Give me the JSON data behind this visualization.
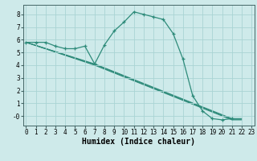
{
  "title": "",
  "xlabel": "Humidex (Indice chaleur)",
  "ylabel": "",
  "bg_color": "#ceeaea",
  "line_color": "#2e8b7a",
  "grid_color": "#aad4d4",
  "series_main": {
    "x": [
      0,
      1,
      2,
      3,
      4,
      5,
      6,
      7,
      8,
      9,
      10,
      11,
      12,
      13,
      14,
      15,
      16,
      17,
      18,
      19,
      20,
      21
    ],
    "y": [
      5.8,
      5.8,
      5.8,
      5.5,
      5.3,
      5.3,
      5.5,
      4.1,
      5.6,
      6.7,
      7.4,
      8.2,
      8.0,
      7.8,
      7.6,
      6.5,
      4.5,
      1.6,
      0.4,
      -0.2,
      -0.3,
      -0.2
    ]
  },
  "lines": [
    {
      "x": [
        0,
        7,
        21,
        22
      ],
      "y": [
        5.8,
        4.1,
        -0.2,
        -0.2
      ]
    },
    {
      "x": [
        0,
        7,
        21,
        22
      ],
      "y": [
        5.8,
        4.05,
        -0.25,
        -0.25
      ]
    },
    {
      "x": [
        0,
        7,
        21,
        22
      ],
      "y": [
        5.8,
        4.0,
        -0.3,
        -0.3
      ]
    }
  ],
  "xlim": [
    -0.3,
    23.3
  ],
  "ylim": [
    -0.75,
    8.75
  ],
  "yticks": [
    0,
    1,
    2,
    3,
    4,
    5,
    6,
    7,
    8
  ],
  "ytick_labels": [
    "-0",
    "1",
    "2",
    "3",
    "4",
    "5",
    "6",
    "7",
    "8"
  ],
  "xticks": [
    0,
    1,
    2,
    3,
    4,
    5,
    6,
    7,
    8,
    9,
    10,
    11,
    12,
    13,
    14,
    15,
    16,
    17,
    18,
    19,
    20,
    21,
    22,
    23
  ],
  "xlabel_fontsize": 7,
  "tick_fontsize": 5.5
}
